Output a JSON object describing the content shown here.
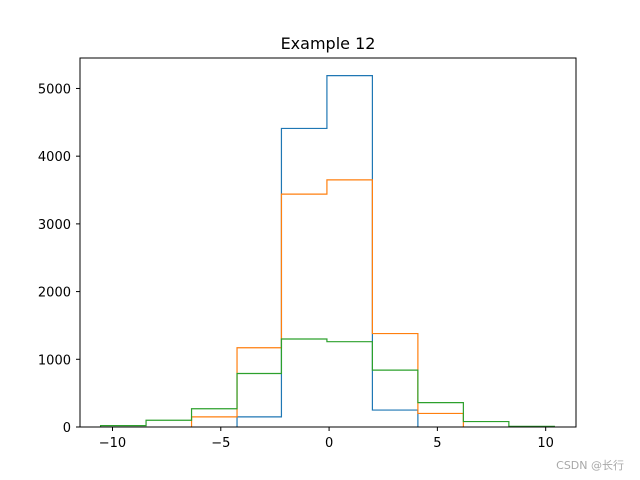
{
  "chart_data": {
    "type": "histogram-step",
    "title": "Example 12",
    "xlabel": "",
    "ylabel": "",
    "xlim": [
      -11.5,
      11.4
    ],
    "ylim": [
      0,
      5450
    ],
    "x_ticks": [
      -10,
      -5,
      0,
      5,
      10
    ],
    "x_tick_labels": [
      "−10",
      "−5",
      "0",
      "5",
      "10"
    ],
    "y_ticks": [
      0,
      1000,
      2000,
      3000,
      4000,
      5000
    ],
    "y_tick_labels": [
      "0",
      "1000",
      "2000",
      "3000",
      "4000",
      "5000"
    ],
    "grid": false,
    "legend": null,
    "series": [
      {
        "color": "#1f77b4",
        "edges": [
          -4.25,
          -2.2,
          -0.1,
          2.0,
          4.1
        ],
        "values": [
          150,
          4410,
          5190,
          250
        ]
      },
      {
        "color": "#ff7f0e",
        "edges": [
          -6.35,
          -4.25,
          -2.2,
          -0.1,
          2.0,
          4.1,
          6.2
        ],
        "values": [
          150,
          1170,
          3440,
          3650,
          1380,
          200
        ]
      },
      {
        "color": "#2ca02c",
        "edges": [
          -10.55,
          -8.45,
          -6.35,
          -4.25,
          -2.2,
          -0.1,
          2.0,
          4.1,
          6.2,
          8.3,
          10.4
        ],
        "values": [
          20,
          100,
          270,
          790,
          1300,
          1260,
          840,
          360,
          80,
          10
        ]
      }
    ]
  },
  "watermark": "CSDN @长行"
}
